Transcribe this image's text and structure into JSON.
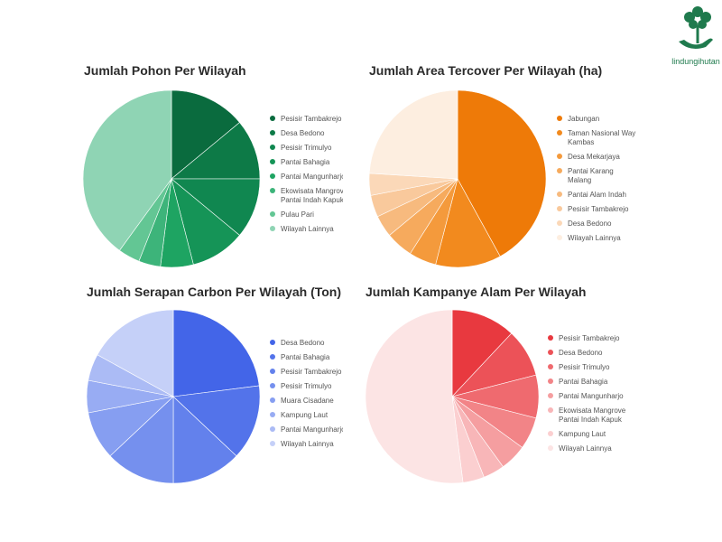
{
  "brand": {
    "name": "lindungihutan",
    "color": "#1f7a4d"
  },
  "chart_data": [
    {
      "type": "pie",
      "title": "Jumlah Pohon Per Wilayah",
      "categories": [
        "Pesisir Tambakrejo",
        "Desa Bedono",
        "Pesisir Trimulyo",
        "Pantai Bahagia",
        "Pantai Mangunharjo",
        "Ekowisata Mangrove Pantai Indah Kapuk",
        "Pulau Pari",
        "Wilayah Lainnya"
      ],
      "values": [
        14,
        11,
        11,
        10,
        6,
        4,
        4,
        40
      ],
      "colors": [
        "#0a6b3e",
        "#0d7a47",
        "#108750",
        "#159457",
        "#1ea462",
        "#3db47a",
        "#63c694",
        "#8fd4b4"
      ],
      "legend": "right"
    },
    {
      "type": "pie",
      "title": "Jumlah Area Tercover Per Wilayah (ha)",
      "categories": [
        "Jabungan",
        "Taman Nasional Way Kambas",
        "Desa Mekarjaya",
        "Pantai Karang Malang",
        "Pantai Alam Indah",
        "Pesisir Tambakrejo",
        "Desa Bedono",
        "Wilayah Lainnya"
      ],
      "values": [
        42,
        12,
        5,
        5,
        4,
        4,
        4,
        24
      ],
      "colors": [
        "#ee7a08",
        "#f28a1e",
        "#f49a3c",
        "#f6aa5d",
        "#f7ba7e",
        "#f9c99c",
        "#fbd8b8",
        "#fdeee0"
      ],
      "legend": "right"
    },
    {
      "type": "pie",
      "title": "Jumlah Serapan Carbon Per Wilayah (Ton)",
      "categories": [
        "Desa Bedono",
        "Pantai Bahagia",
        "Pesisir Tambakrejo",
        "Pesisir Trimulyo",
        "Muara Cisadane",
        "Kampung Laut",
        "Pantai Mangunharjo",
        "Wilayah Lainnya"
      ],
      "values": [
        23,
        14,
        13,
        13,
        9,
        6,
        5,
        17
      ],
      "colors": [
        "#4365e8",
        "#5373ea",
        "#6381ec",
        "#7590ee",
        "#869ef1",
        "#98acf3",
        "#abbbf5",
        "#c5d0f8"
      ],
      "legend": "right"
    },
    {
      "type": "pie",
      "title": "Jumlah Kampanye Alam Per Wilayah",
      "categories": [
        "Pesisir Tambakrejo",
        "Desa Bedono",
        "Pesisir Trimulyo",
        "Pantai Bahagia",
        "Pantai Mangunharjo",
        "Ekowisata Mangrove Pantai Indah Kapuk",
        "Kampung Laut",
        "Wilayah Lainnya"
      ],
      "values": [
        12,
        9,
        8,
        6,
        5,
        4,
        4,
        52
      ],
      "colors": [
        "#e8393f",
        "#ec5258",
        "#ef6a6f",
        "#f28487",
        "#f59ea0",
        "#f8b6b8",
        "#fbcfd0",
        "#fce4e4"
      ],
      "legend": "right"
    }
  ]
}
